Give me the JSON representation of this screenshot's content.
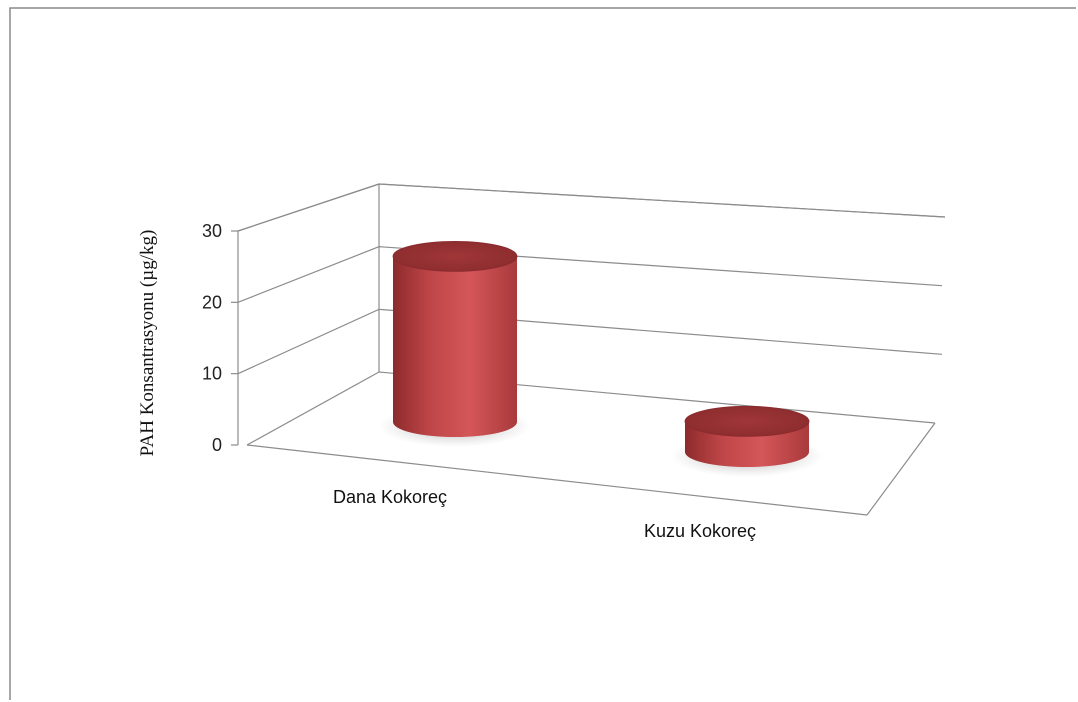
{
  "chart_data": {
    "type": "bar",
    "style": "3d-cylinder",
    "categories": [
      "Dana Kokoreç",
      "Kuzu Kokoreç"
    ],
    "series": [
      {
        "values": [
          27,
          5
        ],
        "color": "#c0474a"
      }
    ],
    "title": "",
    "xlabel": "",
    "ylabel": "PAH Konsantrasyonu  (µg/kg)",
    "ylim": [
      0,
      30
    ],
    "yticks": [
      0,
      10,
      20,
      30
    ],
    "grid": true,
    "legend": "none"
  }
}
